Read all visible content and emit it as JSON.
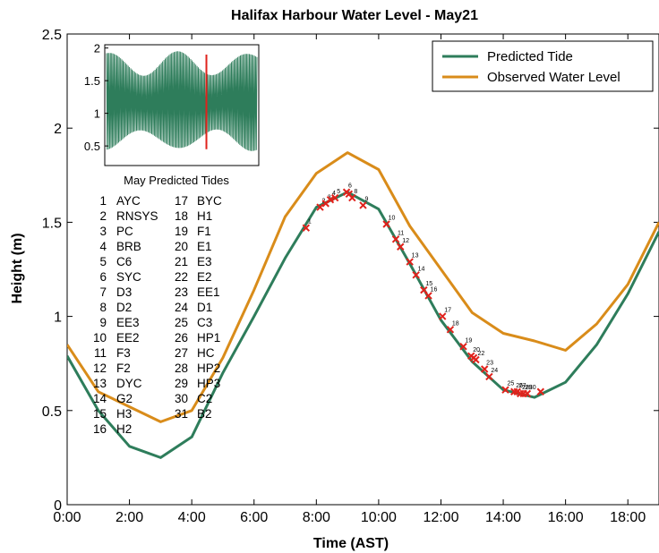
{
  "chart_data": {
    "type": "line",
    "title": "Halifax Harbour Water Level - May21",
    "xlabel": "Time (AST)",
    "ylabel": "Height (m)",
    "xlim": [
      0,
      19
    ],
    "ylim": [
      0,
      2.5
    ],
    "x_ticks": [
      0,
      2,
      4,
      6,
      8,
      10,
      12,
      14,
      16,
      18
    ],
    "x_tick_labels": [
      "0:00",
      "2:00",
      "4:00",
      "6:00",
      "8:00",
      "10:00",
      "12:00",
      "14:00",
      "16:00",
      "18:00"
    ],
    "y_ticks": [
      0,
      0.5,
      1,
      1.5,
      2,
      2.5
    ],
    "y_tick_labels": [
      "0",
      "0.5",
      "1",
      "1.5",
      "2",
      "2.5"
    ],
    "grid": false,
    "legend_position": "top-right",
    "series": [
      {
        "name": "Predicted Tide",
        "color": "#2e7d5b",
        "x": [
          0,
          1,
          2,
          3,
          4,
          5,
          6,
          7,
          8,
          9,
          10,
          11,
          12,
          13,
          14,
          15,
          16,
          17,
          18,
          19
        ],
        "y": [
          0.79,
          0.5,
          0.31,
          0.25,
          0.36,
          0.7,
          1.0,
          1.31,
          1.58,
          1.66,
          1.57,
          1.28,
          0.98,
          0.76,
          0.61,
          0.57,
          0.65,
          0.85,
          1.12,
          1.45
        ]
      },
      {
        "name": "Observed Water Level",
        "color": "#d98c1a",
        "x": [
          0,
          1,
          2,
          3,
          4,
          5,
          6,
          7,
          8,
          9,
          10,
          11,
          12,
          13,
          14,
          15,
          16,
          17,
          18,
          19
        ],
        "y": [
          0.85,
          0.6,
          0.52,
          0.44,
          0.5,
          0.78,
          1.14,
          1.53,
          1.76,
          1.87,
          1.78,
          1.48,
          1.25,
          1.02,
          0.91,
          0.87,
          0.82,
          0.96,
          1.17,
          1.5
        ]
      }
    ],
    "markers": {
      "color": "#e0221c",
      "x": [
        7.67,
        8.12,
        8.3,
        8.45,
        8.6,
        8.97,
        9.05,
        9.15,
        9.5,
        10.25,
        10.55,
        10.7,
        11.0,
        11.2,
        11.45,
        11.6,
        12.05,
        12.3,
        12.72,
        12.97,
        13.05,
        13.12,
        13.4,
        13.55,
        14.07,
        14.35,
        14.45,
        14.55,
        14.65,
        14.77,
        15.2
      ],
      "y": [
        1.47,
        1.58,
        1.6,
        1.62,
        1.63,
        1.66,
        1.65,
        1.63,
        1.59,
        1.49,
        1.41,
        1.37,
        1.29,
        1.22,
        1.14,
        1.11,
        1.0,
        0.93,
        0.84,
        0.79,
        0.78,
        0.77,
        0.72,
        0.68,
        0.61,
        0.6,
        0.6,
        0.59,
        0.59,
        0.59,
        0.6
      ],
      "labels": [
        "1",
        "2",
        "3",
        "4",
        "5",
        "6",
        "7",
        "8",
        "9",
        "10",
        "11",
        "12",
        "13",
        "14",
        "15",
        "16",
        "17",
        "18",
        "19",
        "20",
        "21",
        "22",
        "23",
        "24",
        "25",
        "26",
        "27",
        "28",
        "29",
        "30",
        "31"
      ],
      "shown_labels": [
        "1",
        "2",
        "3",
        "4",
        "5",
        "6",
        "8",
        "9",
        "10",
        "11",
        "12",
        "13",
        "14",
        "15",
        "16",
        "17",
        "18",
        "19",
        "20",
        "22",
        "23",
        "24",
        "25",
        "26",
        "27",
        "28",
        "29",
        "30"
      ]
    },
    "inset": {
      "caption": "May Predicted Tides",
      "ylim": [
        0.2,
        2.05
      ],
      "y_ticks": [
        0.5,
        1,
        1.5,
        2
      ],
      "y_tick_labels": [
        "0.5",
        "1",
        "1.5",
        "2"
      ],
      "series_color": "#2e7d5b",
      "highlight_color": "#e0221c",
      "highlight_position": 0.66
    },
    "tide_list": [
      {
        "num": "1",
        "name": "AYC"
      },
      {
        "num": "2",
        "name": "RNSYS"
      },
      {
        "num": "3",
        "name": "PC"
      },
      {
        "num": "4",
        "name": "BRB"
      },
      {
        "num": "5",
        "name": "C6"
      },
      {
        "num": "6",
        "name": "SYC"
      },
      {
        "num": "7",
        "name": "D3"
      },
      {
        "num": "8",
        "name": "D2"
      },
      {
        "num": "9",
        "name": "EE3"
      },
      {
        "num": "10",
        "name": "EE2"
      },
      {
        "num": "11",
        "name": "F3"
      },
      {
        "num": "12",
        "name": "F2"
      },
      {
        "num": "13",
        "name": "DYC"
      },
      {
        "num": "14",
        "name": "G2"
      },
      {
        "num": "15",
        "name": "H3"
      },
      {
        "num": "16",
        "name": "H2"
      },
      {
        "num": "17",
        "name": "BYC"
      },
      {
        "num": "18",
        "name": "H1"
      },
      {
        "num": "19",
        "name": "F1"
      },
      {
        "num": "20",
        "name": "E1"
      },
      {
        "num": "21",
        "name": "E3"
      },
      {
        "num": "22",
        "name": "E2"
      },
      {
        "num": "23",
        "name": "EE1"
      },
      {
        "num": "24",
        "name": "D1"
      },
      {
        "num": "25",
        "name": "C3"
      },
      {
        "num": "26",
        "name": "HP1"
      },
      {
        "num": "27",
        "name": "HC"
      },
      {
        "num": "28",
        "name": "HP2"
      },
      {
        "num": "29",
        "name": "HP3"
      },
      {
        "num": "30",
        "name": "C2"
      },
      {
        "num": "31",
        "name": "B2"
      }
    ]
  }
}
